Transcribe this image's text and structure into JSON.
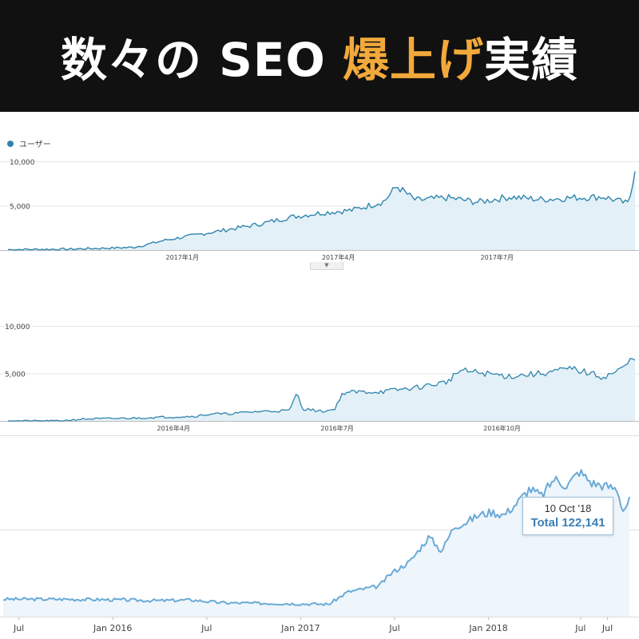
{
  "banner": {
    "title_part1": "数々の SEO ",
    "title_accent": "爆上げ",
    "title_part2": "実績"
  },
  "colors": {
    "banner_bg": "#111111",
    "banner_text": "#ffffff",
    "banner_accent": "#f2a93b",
    "ga_line": "#2f85ad",
    "ga_fill": "#e3f0f7",
    "gsc_line": "#6aaad6",
    "gsc_fill": "#eef5fb"
  },
  "chart_data": [
    {
      "type": "area",
      "legend": "ユーザー",
      "legend_position": "top-left",
      "grid": true,
      "ylim": [
        0,
        10000
      ],
      "yticks": [
        "10,000",
        "5,000"
      ],
      "ytick_values": [
        10000,
        5000
      ],
      "xlim": [
        0,
        1
      ],
      "xticks": [
        {
          "label": "2017年1月",
          "x": 0.278
        },
        {
          "label": "2017年4月",
          "x": 0.527
        },
        {
          "label": "2017年7月",
          "x": 0.78
        }
      ],
      "series": [
        {
          "x": [
            0,
            0.1,
            0.2,
            0.22,
            0.25,
            0.3,
            0.35,
            0.4,
            0.45,
            0.5,
            0.55,
            0.6,
            0.62,
            0.65,
            0.7,
            0.75,
            0.8,
            0.85,
            0.9,
            0.95,
            0.99,
            1.0
          ],
          "values": [
            50,
            100,
            300,
            600,
            1100,
            1700,
            2300,
            2900,
            3700,
            4200,
            4500,
            5500,
            7200,
            5600,
            5900,
            5400,
            6000,
            5700,
            5900,
            6000,
            5200,
            9200
          ]
        }
      ]
    },
    {
      "type": "area",
      "grid": true,
      "ylim": [
        0,
        10000
      ],
      "yticks": [
        "10,000",
        "5,000"
      ],
      "ytick_values": [
        10000,
        5000
      ],
      "xlim": [
        0,
        1
      ],
      "xticks": [
        {
          "label": "2016年4月",
          "x": 0.264
        },
        {
          "label": "2016年7月",
          "x": 0.525
        },
        {
          "label": "2016年10月",
          "x": 0.788
        }
      ],
      "series": [
        {
          "x": [
            0,
            0.08,
            0.12,
            0.2,
            0.3,
            0.33,
            0.34,
            0.4,
            0.45,
            0.46,
            0.47,
            0.5,
            0.52,
            0.535,
            0.6,
            0.65,
            0.7,
            0.72,
            0.8,
            0.85,
            0.9,
            0.95,
            0.98,
            1.0
          ],
          "values": [
            0,
            0,
            200,
            300,
            500,
            800,
            700,
            1000,
            1100,
            3000,
            1300,
            1000,
            1200,
            3000,
            3100,
            3500,
            4100,
            5300,
            4700,
            5000,
            5500,
            4600,
            5500,
            6800
          ]
        }
      ]
    },
    {
      "type": "area",
      "grid": true,
      "xlim": [
        0,
        1
      ],
      "ylim": [
        0,
        1
      ],
      "xticks": [
        {
          "label": "Jul",
          "x": 0.025
        },
        {
          "label": "Jan 2016",
          "x": 0.175
        },
        {
          "label": "Jul",
          "x": 0.325
        },
        {
          "label": "Jan 2017",
          "x": 0.475
        },
        {
          "label": "Jul",
          "x": 0.625
        },
        {
          "label": "Jan 2018",
          "x": 0.775
        },
        {
          "label": "Jul",
          "x": 0.922
        },
        {
          "label": "Jul",
          "x": 0.965
        }
      ],
      "tooltip": {
        "date": "10 Oct '18",
        "label": "Total 122,141"
      },
      "series": [
        {
          "x": [
            0,
            0.1,
            0.19,
            0.25,
            0.3,
            0.35,
            0.45,
            0.52,
            0.55,
            0.6,
            0.62,
            0.65,
            0.68,
            0.7,
            0.72,
            0.74,
            0.76,
            0.78,
            0.8,
            0.82,
            0.84,
            0.86,
            0.88,
            0.9,
            0.92,
            0.94,
            0.96,
            0.98,
            0.99,
            1.0
          ],
          "values": [
            0.12,
            0.12,
            0.115,
            0.11,
            0.115,
            0.095,
            0.09,
            0.085,
            0.17,
            0.21,
            0.3,
            0.38,
            0.55,
            0.45,
            0.62,
            0.65,
            0.7,
            0.72,
            0.7,
            0.78,
            0.88,
            0.83,
            0.95,
            0.9,
            1.0,
            0.92,
            0.9,
            0.88,
            0.73,
            0.8
          ]
        }
      ]
    }
  ]
}
